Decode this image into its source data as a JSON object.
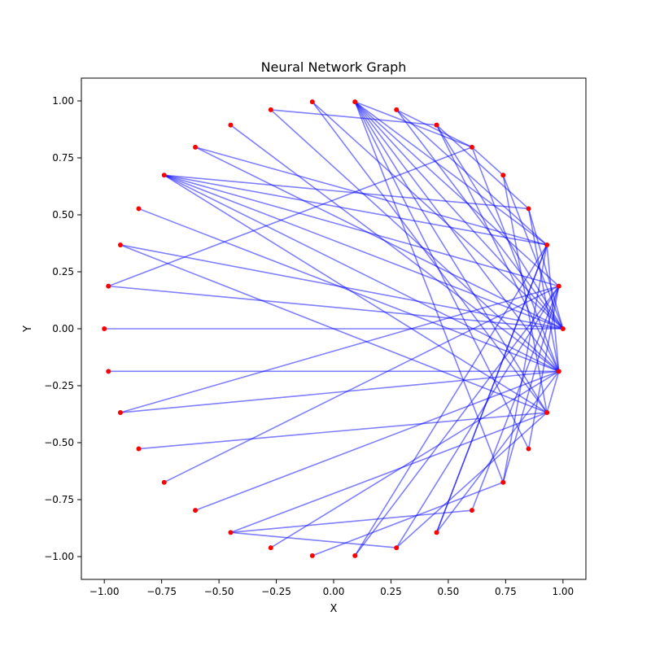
{
  "chart_data": {
    "type": "scatter",
    "title": "Neural Network Graph",
    "xlabel": "X",
    "ylabel": "Y",
    "xlim": [
      -1.1,
      1.1
    ],
    "ylim": [
      -1.1,
      1.1
    ],
    "xticks": [
      -1.0,
      -0.75,
      -0.5,
      -0.25,
      0.0,
      0.25,
      0.5,
      0.75,
      1.0
    ],
    "yticks": [
      -1.0,
      -0.75,
      -0.5,
      -0.25,
      0.0,
      0.25,
      0.5,
      0.75,
      1.0
    ],
    "xtick_labels": [
      "−1.00",
      "−0.75",
      "−0.50",
      "−0.25",
      "0.00",
      "0.25",
      "0.50",
      "0.75",
      "1.00"
    ],
    "ytick_labels": [
      "−1.00",
      "−0.75",
      "−0.50",
      "−0.25",
      "0.00",
      "0.25",
      "0.50",
      "0.75",
      "1.00"
    ],
    "grid": false,
    "node_color": "#ff0000",
    "edge_color": "#0000ff",
    "edge_alpha": 0.5,
    "nodes": [
      {
        "x": 1.0,
        "y": 0.0
      },
      {
        "x": 0.982,
        "y": 0.187
      },
      {
        "x": 0.93,
        "y": 0.368
      },
      {
        "x": 0.85,
        "y": 0.527
      },
      {
        "x": 0.739,
        "y": 0.674
      },
      {
        "x": 0.603,
        "y": 0.797
      },
      {
        "x": 0.449,
        "y": 0.894
      },
      {
        "x": 0.274,
        "y": 0.961
      },
      {
        "x": 0.093,
        "y": 0.996
      },
      {
        "x": -0.093,
        "y": 0.996
      },
      {
        "x": -0.274,
        "y": 0.961
      },
      {
        "x": -0.449,
        "y": 0.894
      },
      {
        "x": -0.603,
        "y": 0.797
      },
      {
        "x": -0.739,
        "y": 0.674
      },
      {
        "x": -0.85,
        "y": 0.527
      },
      {
        "x": -0.93,
        "y": 0.368
      },
      {
        "x": -0.982,
        "y": 0.187
      },
      {
        "x": -1.0,
        "y": 0.0
      },
      {
        "x": -0.982,
        "y": -0.187
      },
      {
        "x": -0.93,
        "y": -0.368
      },
      {
        "x": -0.85,
        "y": -0.527
      },
      {
        "x": -0.739,
        "y": -0.674
      },
      {
        "x": -0.603,
        "y": -0.797
      },
      {
        "x": -0.449,
        "y": -0.894
      },
      {
        "x": -0.274,
        "y": -0.961
      },
      {
        "x": -0.093,
        "y": -0.996
      },
      {
        "x": 0.093,
        "y": -0.996
      },
      {
        "x": 0.274,
        "y": -0.961
      },
      {
        "x": 0.449,
        "y": -0.894
      },
      {
        "x": 0.603,
        "y": -0.797
      },
      {
        "x": 0.739,
        "y": -0.674
      },
      {
        "x": 0.85,
        "y": -0.527
      },
      {
        "x": 0.93,
        "y": -0.368
      },
      {
        "x": 0.982,
        "y": -0.187
      }
    ],
    "edges": [
      [
        17,
        0
      ],
      [
        18,
        33
      ],
      [
        19,
        33
      ],
      [
        19,
        1
      ],
      [
        20,
        32
      ],
      [
        21,
        1
      ],
      [
        22,
        33
      ],
      [
        23,
        32
      ],
      [
        23,
        29
      ],
      [
        23,
        27
      ],
      [
        24,
        33
      ],
      [
        25,
        30
      ],
      [
        26,
        2
      ],
      [
        27,
        1
      ],
      [
        28,
        2
      ],
      [
        16,
        0
      ],
      [
        16,
        5
      ],
      [
        15,
        0
      ],
      [
        15,
        32
      ],
      [
        14,
        33
      ],
      [
        13,
        3
      ],
      [
        13,
        2
      ],
      [
        13,
        1
      ],
      [
        13,
        0
      ],
      [
        13,
        33
      ],
      [
        13,
        32
      ],
      [
        12,
        2
      ],
      [
        12,
        0
      ],
      [
        10,
        6
      ],
      [
        10,
        33
      ],
      [
        9,
        0
      ],
      [
        9,
        32
      ],
      [
        11,
        33
      ],
      [
        8,
        5
      ],
      [
        8,
        2
      ],
      [
        8,
        0
      ],
      [
        8,
        33
      ],
      [
        8,
        32
      ],
      [
        8,
        31
      ],
      [
        8,
        30
      ],
      [
        8,
        1
      ],
      [
        7,
        5
      ],
      [
        7,
        2
      ],
      [
        7,
        0
      ],
      [
        6,
        3
      ],
      [
        6,
        0
      ],
      [
        6,
        33
      ],
      [
        5,
        4
      ],
      [
        5,
        33
      ],
      [
        4,
        0
      ],
      [
        4,
        32
      ],
      [
        3,
        0
      ],
      [
        3,
        33
      ],
      [
        2,
        33
      ],
      [
        2,
        30
      ],
      [
        2,
        28
      ],
      [
        1,
        31
      ],
      [
        1,
        30
      ],
      [
        1,
        29
      ],
      [
        1,
        26
      ],
      [
        33,
        32
      ],
      [
        32,
        27
      ],
      [
        33,
        28
      ]
    ]
  }
}
